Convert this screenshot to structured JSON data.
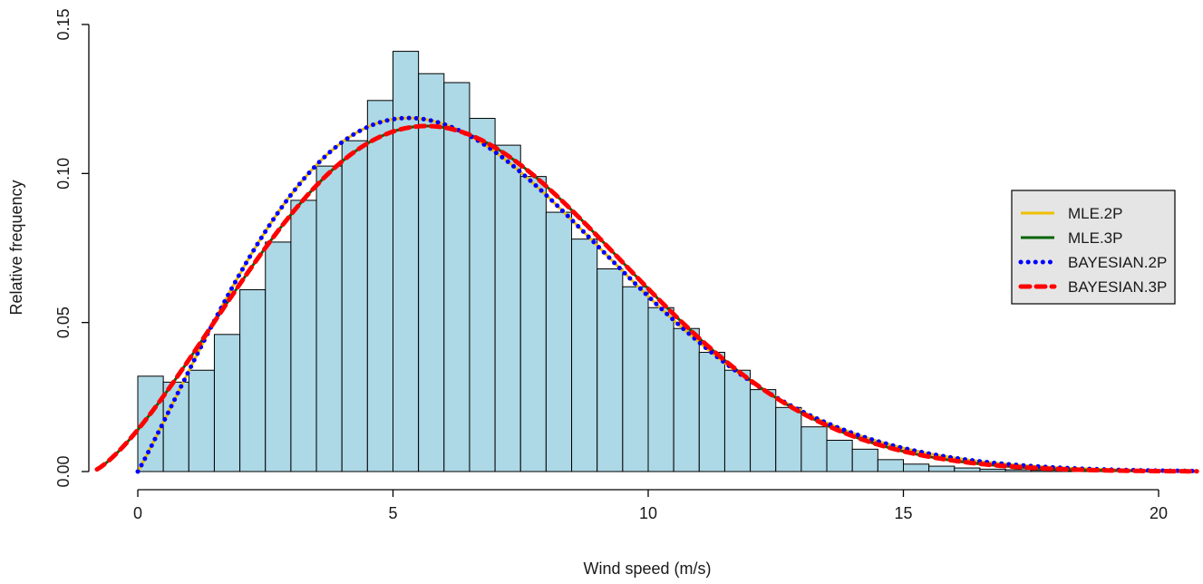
{
  "chart_data": {
    "type": "histogram",
    "xlabel": "Wind speed (m/s)",
    "ylabel": "Relative frequency",
    "xlim": [
      -0.8,
      20.8
    ],
    "ylim": [
      0,
      0.15
    ],
    "x_ticks": [
      0,
      5,
      10,
      15,
      20
    ],
    "y_ticks": [
      0.0,
      0.05,
      0.1,
      0.15
    ],
    "x_tick_labels": [
      "0",
      "5",
      "10",
      "15",
      "20"
    ],
    "y_tick_labels": [
      "0.00",
      "0.05",
      "0.10",
      "0.15"
    ],
    "grid": false,
    "legend_position": "right",
    "bin_width": 0.5,
    "bin_starts": [
      0,
      0.5,
      1,
      1.5,
      2,
      2.5,
      3,
      3.5,
      4,
      4.5,
      5,
      5.5,
      6,
      6.5,
      7,
      7.5,
      8,
      8.5,
      9,
      9.5,
      10,
      10.5,
      11,
      11.5,
      12,
      12.5,
      13,
      13.5,
      14,
      14.5,
      15,
      15.5,
      16,
      16.5,
      17,
      17.5,
      18,
      18.5,
      19,
      19.5,
      20
    ],
    "bin_values": [
      0.032,
      0.03,
      0.034,
      0.046,
      0.061,
      0.077,
      0.091,
      0.1025,
      0.111,
      0.1245,
      0.141,
      0.1335,
      0.1305,
      0.1185,
      0.1095,
      0.099,
      0.087,
      0.078,
      0.068,
      0.062,
      0.055,
      0.048,
      0.04,
      0.034,
      0.0275,
      0.0215,
      0.015,
      0.0105,
      0.0075,
      0.004,
      0.0025,
      0.0018,
      0.0012,
      0.0008,
      0.0006,
      0.0004,
      0.0003,
      0.0002,
      0.0001,
      0.0001,
      0.0001
    ],
    "bar_color": "#add8e6",
    "series": [
      {
        "name": "MLE.2P",
        "color": "#f0c000",
        "style": "solid",
        "distribution": "weibull",
        "shape": 2.05,
        "scale": 7.35,
        "location": 0
      },
      {
        "name": "MLE.3P",
        "color": "#006400",
        "style": "solid",
        "distribution": "weibull",
        "shape": 2.35,
        "scale": 8.3,
        "location": -0.9
      },
      {
        "name": "BAYESIAN.2P",
        "color": "#0000ff",
        "style": "dotted",
        "distribution": "weibull",
        "shape": 2.05,
        "scale": 7.35,
        "location": 0
      },
      {
        "name": "BAYESIAN.3P",
        "color": "#ff0000",
        "style": "dashed",
        "distribution": "weibull",
        "shape": 2.35,
        "scale": 8.3,
        "location": -0.9
      }
    ],
    "legend_entries": [
      "MLE.2P",
      "MLE.3P",
      "BAYESIAN.2P",
      "BAYESIAN.3P"
    ]
  }
}
